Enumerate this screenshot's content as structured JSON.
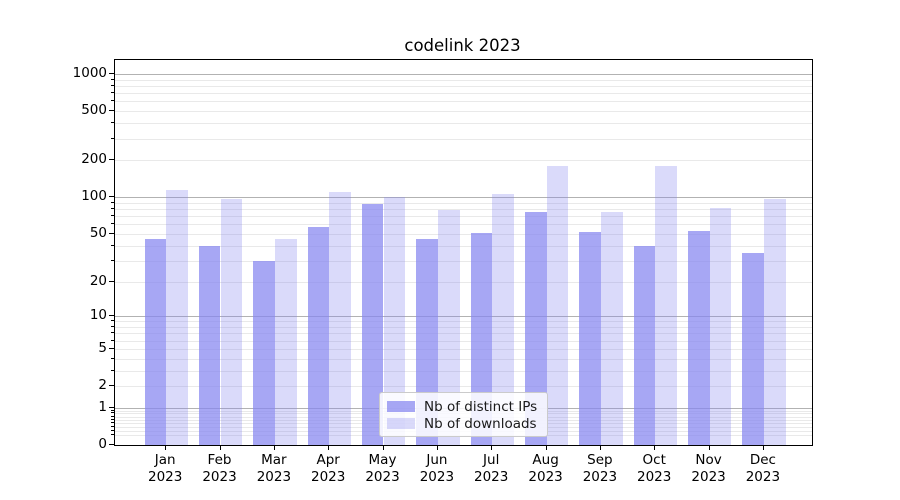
{
  "title": "codelink 2023",
  "colors": {
    "bar_base_rgb": "134,134,240",
    "series_alphas": [
      0.73,
      0.3
    ],
    "bar_dark_hex": "#a6a6f3",
    "bar_light_hex": "#d9d9f7",
    "major_grid": "#b2b2b2",
    "minor_grid": "#e9e9e9",
    "spine": "#000000",
    "legend_border": "#cbcbcb",
    "text": "#000000"
  },
  "legend": {
    "items": [
      {
        "label": "Nb of distinct IPs"
      },
      {
        "label": "Nb of downloads"
      }
    ]
  },
  "chart_data": {
    "type": "bar",
    "title": "codelink 2023",
    "categories": [
      "Jan",
      "Feb",
      "Mar",
      "Apr",
      "May",
      "Jun",
      "Jul",
      "Aug",
      "Sep",
      "Oct",
      "Nov",
      "Dec"
    ],
    "year": "2023",
    "series": [
      {
        "name": "Nb of distinct IPs",
        "values": [
          45,
          40,
          30,
          57,
          88,
          45,
          51,
          75,
          52,
          40,
          53,
          35
        ]
      },
      {
        "name": "Nb of downloads",
        "values": [
          115,
          97,
          45,
          110,
          100,
          79,
          107,
          180,
          75,
          180,
          82,
          97
        ]
      }
    ],
    "yscale": "log10(1+x)",
    "yticks": [
      0,
      1,
      2,
      5,
      10,
      20,
      50,
      100,
      200,
      500,
      1000
    ],
    "major_grid_values": [
      1,
      10,
      100,
      1000
    ],
    "ylim": [
      0,
      1300
    ],
    "xlabel": "",
    "ylabel": "",
    "grid": true,
    "legend_position": "lower center"
  }
}
